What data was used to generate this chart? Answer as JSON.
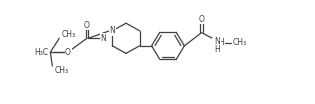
{
  "bg_color": "#ffffff",
  "line_color": "#404040",
  "text_color": "#404040",
  "lw": 0.9,
  "fs": 5.5,
  "figsize": [
    3.15,
    1.04
  ],
  "dpi": 100,
  "xlim": [
    -0.3,
    9.7
  ],
  "ylim": [
    0.0,
    3.45
  ]
}
